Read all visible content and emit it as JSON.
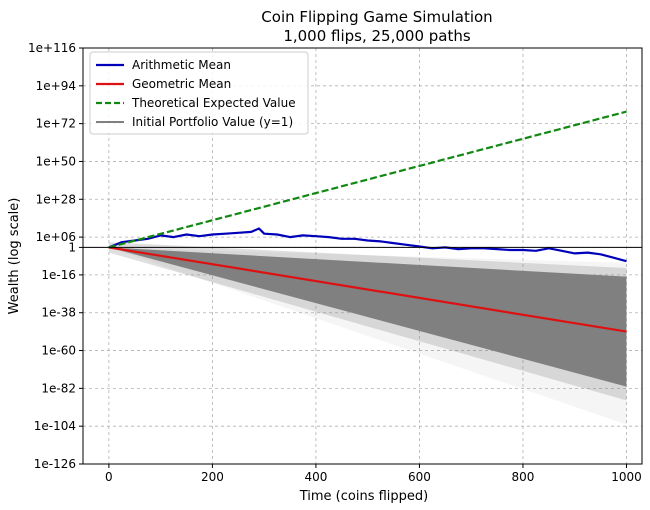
{
  "chart_data": {
    "type": "line",
    "title": "Coin Flipping Game Simulation",
    "subtitle": "1,000 flips, 25,000 paths",
    "xlabel": "Time (coins flipped)",
    "ylabel": "Wealth (log scale)",
    "y_scale": "log10",
    "xlim": [
      -50,
      1030
    ],
    "ylim_log10": [
      -126,
      116
    ],
    "grid": true,
    "legend_position": "top-left",
    "x_ticks": [
      {
        "v": 0,
        "label": "0"
      },
      {
        "v": 200,
        "label": "200"
      },
      {
        "v": 400,
        "label": "400"
      },
      {
        "v": 600,
        "label": "600"
      },
      {
        "v": 800,
        "label": "800"
      },
      {
        "v": 1000,
        "label": "1000"
      }
    ],
    "y_ticks": [
      {
        "e": 116,
        "label": "1e+116"
      },
      {
        "e": 94,
        "label": "1e+94"
      },
      {
        "e": 72,
        "label": "1e+72"
      },
      {
        "e": 50,
        "label": "1e+50"
      },
      {
        "e": 28,
        "label": "1e+28"
      },
      {
        "e": 6,
        "label": "1e+06"
      },
      {
        "e": 0,
        "label": "1"
      },
      {
        "e": -16,
        "label": "1e-16"
      },
      {
        "e": -38,
        "label": "1e-38"
      },
      {
        "e": -60,
        "label": "1e-60"
      },
      {
        "e": -82,
        "label": "1e-82"
      },
      {
        "e": -104,
        "label": "1e-104"
      },
      {
        "e": -126,
        "label": "1e-126"
      }
    ],
    "series": [
      {
        "name": "Arithmetic Mean",
        "color": "#0000bb",
        "style": "solid",
        "x": [
          0,
          25,
          50,
          75,
          100,
          125,
          150,
          175,
          200,
          225,
          250,
          275,
          290,
          300,
          325,
          350,
          375,
          400,
          425,
          450,
          475,
          500,
          525,
          550,
          575,
          600,
          625,
          650,
          675,
          700,
          725,
          750,
          775,
          800,
          825,
          850,
          875,
          900,
          925,
          950,
          975,
          1000
        ],
        "log10_y": [
          0,
          3,
          4,
          5,
          7,
          6,
          7.5,
          6.5,
          7.5,
          8,
          8.5,
          9,
          11,
          8,
          7.5,
          6,
          7,
          6.5,
          6,
          5,
          5,
          4,
          3.5,
          2.5,
          1.5,
          0.5,
          -0.5,
          0,
          -1,
          -0.5,
          -0.5,
          -1,
          -1.5,
          -1.5,
          -2,
          -0.5,
          -2,
          -3.5,
          -3,
          -4,
          -6,
          -8
        ]
      },
      {
        "name": "Geometric Mean",
        "color": "#dd1111",
        "style": "solid",
        "x": [
          0,
          1000
        ],
        "log10_y": [
          0,
          -49
        ]
      },
      {
        "name": "Theoretical Expected Value",
        "color": "#118811",
        "style": "dashed",
        "x": [
          0,
          1000
        ],
        "log10_y": [
          0,
          79
        ]
      },
      {
        "name": "Initial Portfolio Value (y=1)",
        "color": "#000000",
        "style": "reference",
        "log10_y": 0
      }
    ],
    "path_band": {
      "color": "#808080",
      "x": [
        0,
        1000
      ],
      "dense_lower_log10": [
        0,
        -81
      ],
      "dense_upper_log10": [
        0,
        -17
      ],
      "faint_lower_log10": [
        0,
        -103
      ],
      "faint_upper_log10": [
        0,
        -9
      ]
    }
  }
}
